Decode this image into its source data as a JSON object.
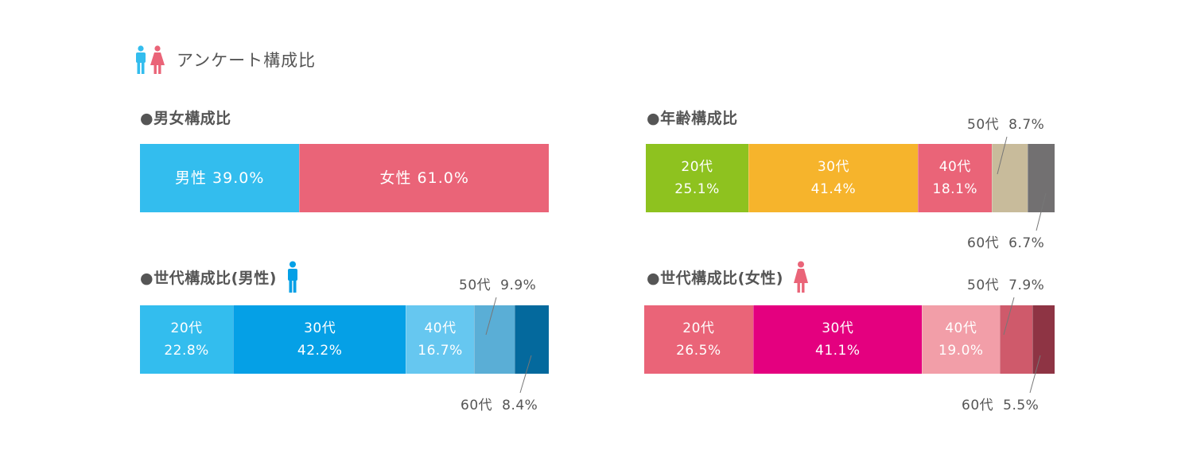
{
  "header": {
    "title": "アンケート構成比"
  },
  "colors": {
    "male": "#33bdee",
    "female": "#ea6478",
    "age": [
      "#8ec21f",
      "#f6b42c",
      "#ea6478",
      "#c8bb9b",
      "#727071"
    ],
    "male_age": [
      "#33bdee",
      "#05a0e6",
      "#66c7f0",
      "#5aaed6",
      "#04699d"
    ],
    "female_age": [
      "#ea6478",
      "#e4007f",
      "#f29ea8",
      "#cf5a6b",
      "#8e3444"
    ]
  },
  "chart_data": [
    {
      "type": "bar",
      "stacked": true,
      "orientation": "horizontal",
      "title": "●男女構成比",
      "categories": [
        "男性",
        "女性"
      ],
      "values": [
        39.0,
        61.0
      ],
      "labels": [
        "男性 39.0%",
        "女性 61.0%"
      ]
    },
    {
      "type": "bar",
      "stacked": true,
      "orientation": "horizontal",
      "title": "●年齢構成比",
      "categories": [
        "20代",
        "30代",
        "40代",
        "50代",
        "60代"
      ],
      "values": [
        25.1,
        41.4,
        18.1,
        8.7,
        6.7
      ],
      "inner_labels": [
        [
          "20代",
          "25.1%"
        ],
        [
          "30代",
          "41.4%"
        ],
        [
          "40代",
          "18.1%"
        ]
      ],
      "callouts": [
        {
          "label": "50代",
          "value": "8.7%"
        },
        {
          "label": "60代",
          "value": "6.7%"
        }
      ]
    },
    {
      "type": "bar",
      "stacked": true,
      "orientation": "horizontal",
      "title": "●世代構成比(男性)",
      "categories": [
        "20代",
        "30代",
        "40代",
        "50代",
        "60代"
      ],
      "values": [
        22.8,
        42.2,
        16.7,
        9.9,
        8.4
      ],
      "inner_labels": [
        [
          "20代",
          "22.8%"
        ],
        [
          "30代",
          "42.2%"
        ],
        [
          "40代",
          "16.7%"
        ]
      ],
      "callouts": [
        {
          "label": "50代",
          "value": "9.9%"
        },
        {
          "label": "60代",
          "value": "8.4%"
        }
      ]
    },
    {
      "type": "bar",
      "stacked": true,
      "orientation": "horizontal",
      "title": "●世代構成比(女性)",
      "categories": [
        "20代",
        "30代",
        "40代",
        "50代",
        "60代"
      ],
      "values": [
        26.5,
        41.1,
        19.0,
        7.9,
        5.5
      ],
      "inner_labels": [
        [
          "20代",
          "26.5%"
        ],
        [
          "30代",
          "41.1%"
        ],
        [
          "40代",
          "19.0%"
        ]
      ],
      "callouts": [
        {
          "label": "50代",
          "value": "7.9%"
        },
        {
          "label": "60代",
          "value": "5.5%"
        }
      ]
    }
  ]
}
